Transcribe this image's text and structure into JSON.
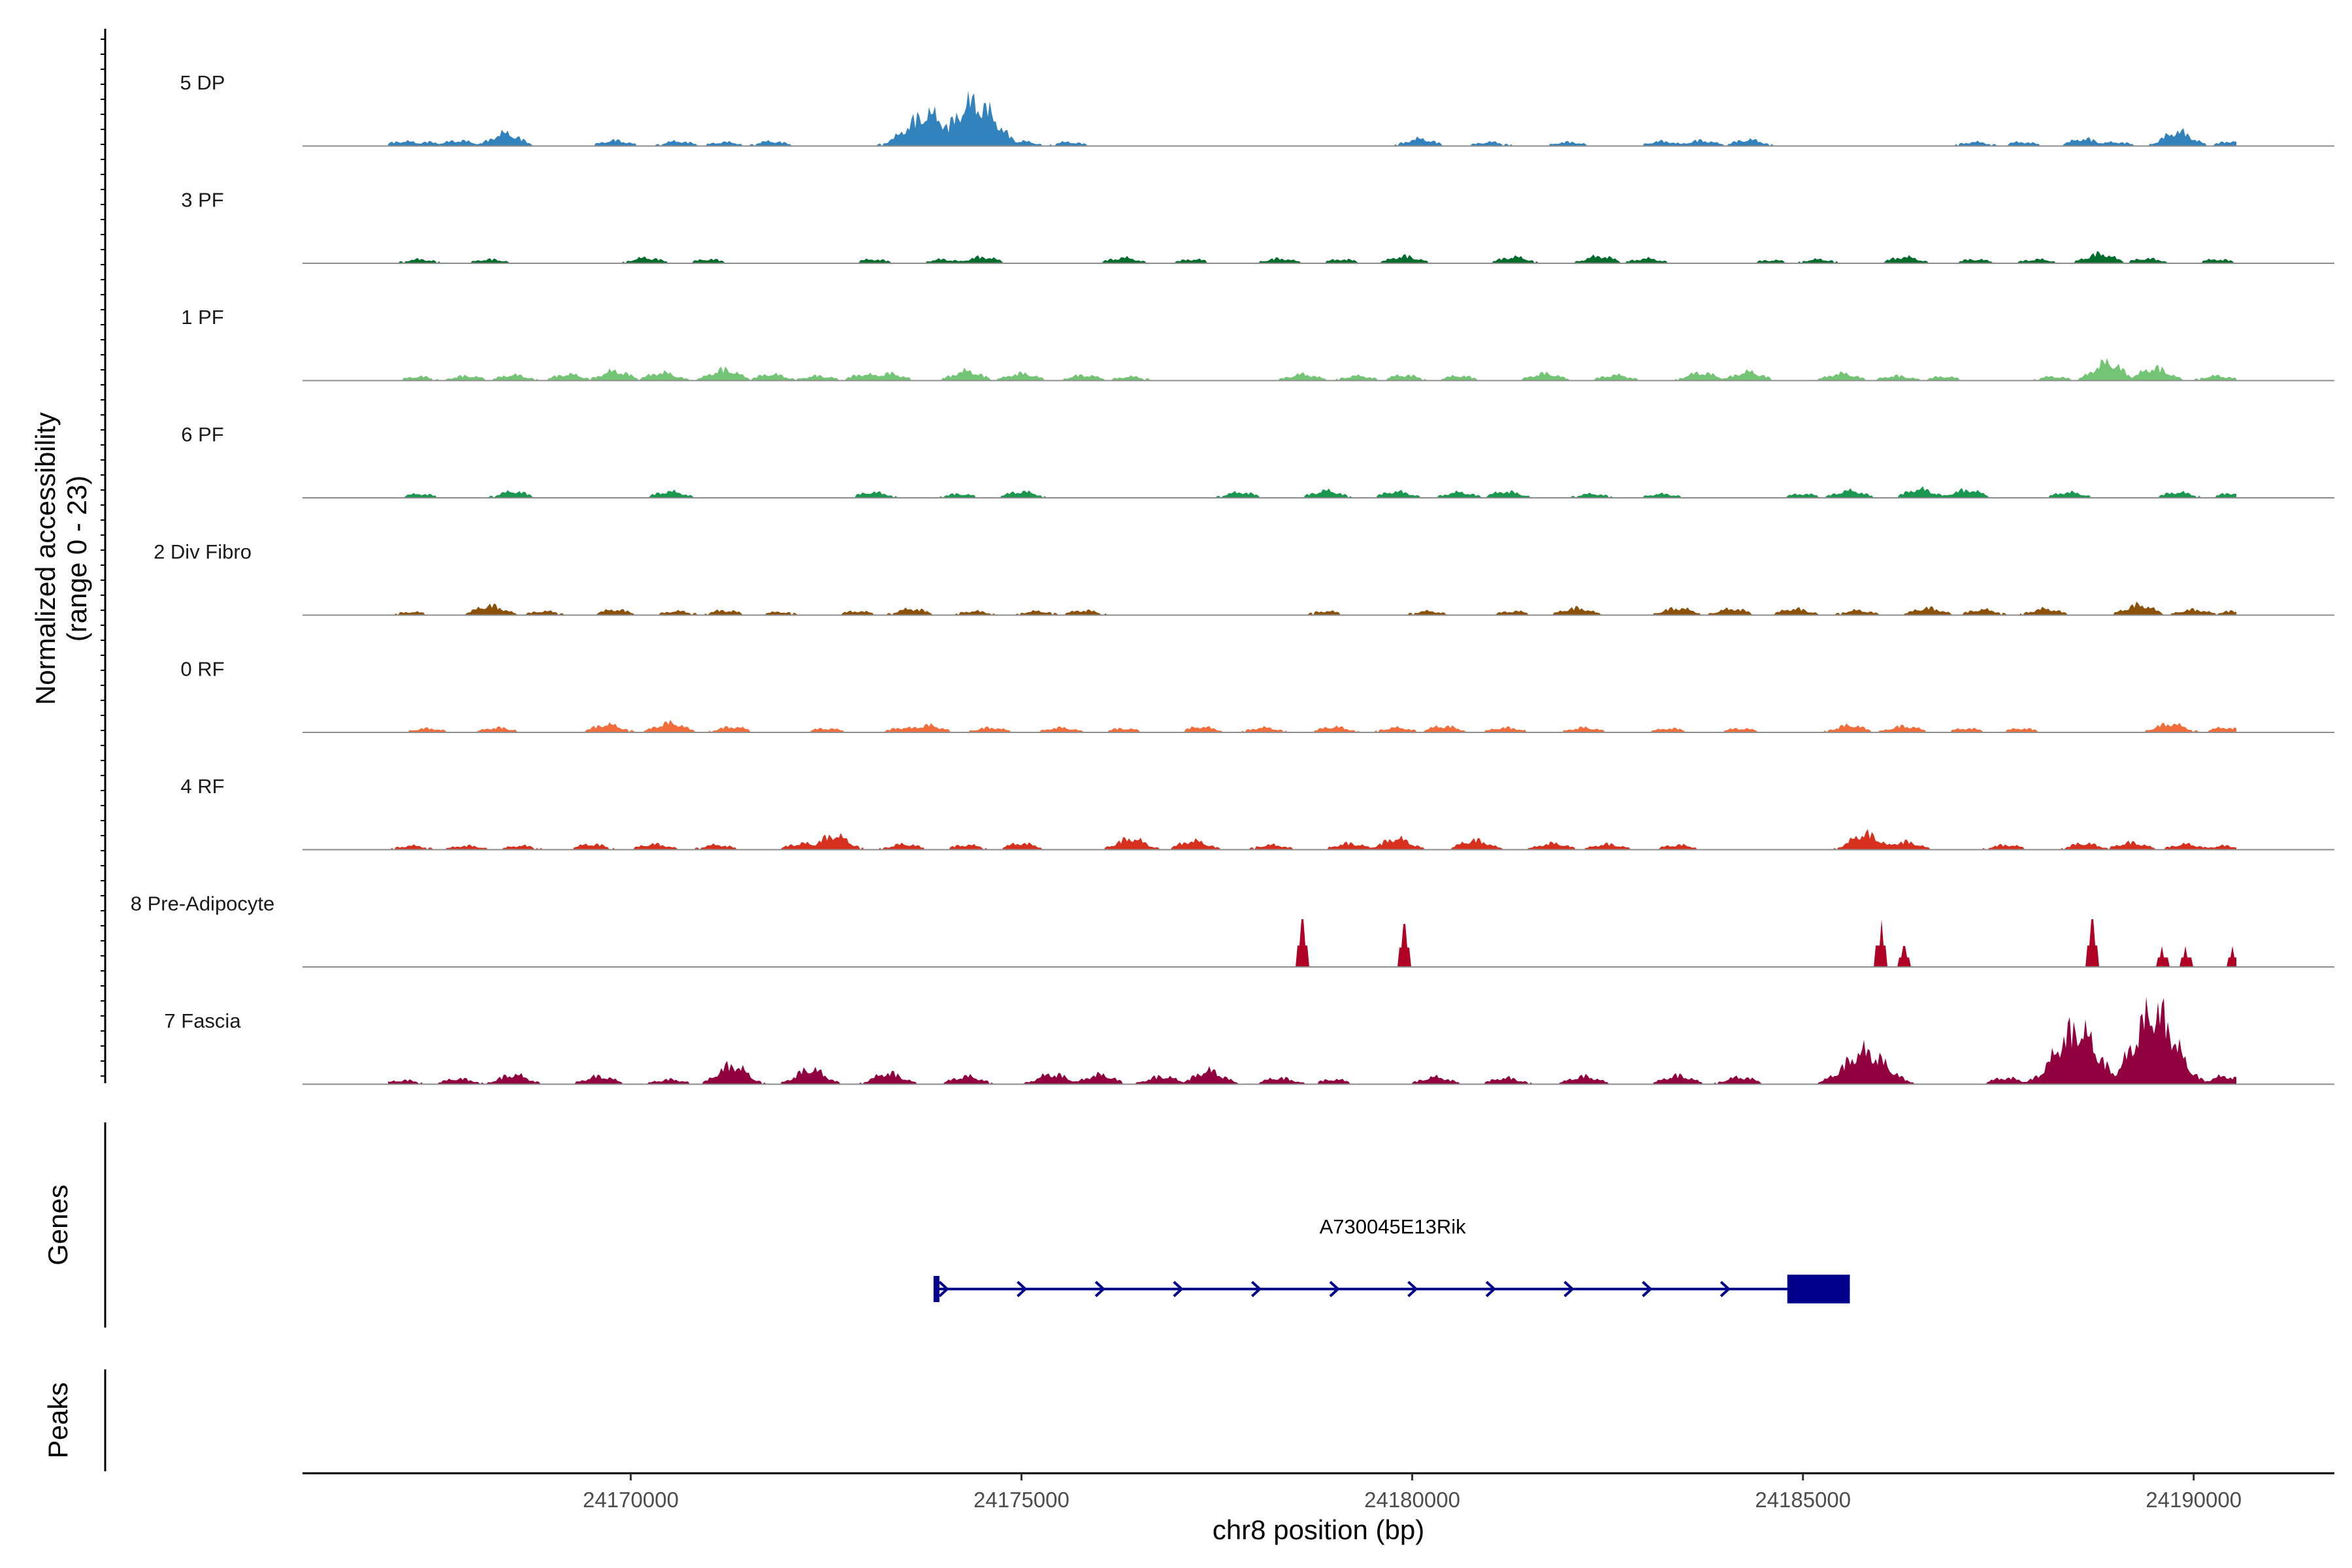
{
  "chart_data": {
    "type": "area",
    "title": "",
    "xlabel": "chr8 position (bp)",
    "ylabel_line1": "Normalized accessibility",
    "ylabel_line2": "(range 0 - 23)",
    "y_range": [
      0,
      23
    ],
    "xlim": [
      24165800,
      24191800
    ],
    "x_ticks": [
      24170000,
      24175000,
      24180000,
      24185000,
      24190000
    ],
    "x_tick_labels": [
      "24170000",
      "24175000",
      "24180000",
      "24185000",
      "24190000"
    ],
    "tracks": [
      {
        "name": "5 DP",
        "color": "#3182bd",
        "peaks": [
          [
            24167100,
            0.6
          ],
          [
            24167400,
            0.5
          ],
          [
            24167800,
            0.7
          ],
          [
            24168400,
            1.6
          ],
          [
            24169800,
            0.7
          ],
          [
            24170600,
            0.6
          ],
          [
            24171200,
            0.5
          ],
          [
            24171800,
            0.6
          ],
          [
            24173800,
            4.0
          ],
          [
            24174400,
            5.5
          ],
          [
            24175000,
            0.6
          ],
          [
            24175600,
            0.5
          ],
          [
            24180100,
            0.9
          ],
          [
            24181000,
            0.5
          ],
          [
            24182000,
            0.5
          ],
          [
            24183200,
            0.6
          ],
          [
            24183700,
            0.7
          ],
          [
            24184300,
            0.8
          ],
          [
            24187200,
            0.5
          ],
          [
            24187800,
            0.5
          ],
          [
            24188600,
            0.9
          ],
          [
            24189000,
            0.5
          ],
          [
            24189800,
            1.8
          ],
          [
            24190500,
            0.6
          ]
        ]
      },
      {
        "name": "3 PF",
        "color": "#006d2c",
        "peaks": [
          [
            24167300,
            0.5
          ],
          [
            24168200,
            0.5
          ],
          [
            24170200,
            0.7
          ],
          [
            24171000,
            0.5
          ],
          [
            24173100,
            0.5
          ],
          [
            24174000,
            0.5
          ],
          [
            24174500,
            0.8
          ],
          [
            24176300,
            0.7
          ],
          [
            24177200,
            0.5
          ],
          [
            24178300,
            0.6
          ],
          [
            24179100,
            0.5
          ],
          [
            24179900,
            0.9
          ],
          [
            24181300,
            0.8
          ],
          [
            24182400,
            0.9
          ],
          [
            24183000,
            0.6
          ],
          [
            24184600,
            0.4
          ],
          [
            24185200,
            0.5
          ],
          [
            24186300,
            0.8
          ],
          [
            24187200,
            0.5
          ],
          [
            24188000,
            0.5
          ],
          [
            24188800,
            1.2
          ],
          [
            24189400,
            0.6
          ],
          [
            24190300,
            0.5
          ]
        ]
      },
      {
        "name": "1 PF",
        "color": "#74c476",
        "peaks": [
          [
            24167300,
            0.5
          ],
          [
            24167900,
            0.6
          ],
          [
            24168500,
            0.7
          ],
          [
            24169200,
            0.8
          ],
          [
            24169800,
            1.2
          ],
          [
            24170400,
            1.0
          ],
          [
            24171200,
            1.4
          ],
          [
            24171800,
            0.8
          ],
          [
            24172400,
            0.6
          ],
          [
            24173000,
            0.8
          ],
          [
            24173300,
            0.9
          ],
          [
            24174300,
            1.2
          ],
          [
            24175000,
            0.9
          ],
          [
            24175800,
            0.7
          ],
          [
            24176400,
            0.5
          ],
          [
            24178600,
            0.8
          ],
          [
            24179300,
            0.6
          ],
          [
            24179900,
            0.7
          ],
          [
            24180600,
            0.6
          ],
          [
            24181700,
            0.9
          ],
          [
            24182600,
            0.7
          ],
          [
            24183700,
            1.0
          ],
          [
            24184300,
            1.1
          ],
          [
            24185500,
            0.9
          ],
          [
            24186200,
            0.6
          ],
          [
            24186800,
            0.5
          ],
          [
            24188200,
            0.5
          ],
          [
            24188900,
            2.3
          ],
          [
            24189500,
            1.6
          ],
          [
            24190300,
            0.6
          ]
        ]
      },
      {
        "name": "6 PF",
        "color": "#1a9850",
        "peaks": [
          [
            24167300,
            0.5
          ],
          [
            24168500,
            0.8
          ],
          [
            24170500,
            0.8
          ],
          [
            24173100,
            0.7
          ],
          [
            24174200,
            0.5
          ],
          [
            24175000,
            0.8
          ],
          [
            24177800,
            0.7
          ],
          [
            24178900,
            0.9
          ],
          [
            24179800,
            0.8
          ],
          [
            24180600,
            0.7
          ],
          [
            24181200,
            0.8
          ],
          [
            24182300,
            0.5
          ],
          [
            24183200,
            0.5
          ],
          [
            24185000,
            0.5
          ],
          [
            24185600,
            0.9
          ],
          [
            24186500,
            1.1
          ],
          [
            24187100,
            1.0
          ],
          [
            24188400,
            0.7
          ],
          [
            24189800,
            0.7
          ],
          [
            24190500,
            0.6
          ]
        ]
      },
      {
        "name": "2 Div Fibro",
        "color": "#8c510a",
        "peaks": [
          [
            24167200,
            0.4
          ],
          [
            24168200,
            1.2
          ],
          [
            24168900,
            0.5
          ],
          [
            24169800,
            0.7
          ],
          [
            24170600,
            0.5
          ],
          [
            24171200,
            0.6
          ],
          [
            24171900,
            0.4
          ],
          [
            24172900,
            0.5
          ],
          [
            24173600,
            0.8
          ],
          [
            24174400,
            0.5
          ],
          [
            24175200,
            0.5
          ],
          [
            24175800,
            0.6
          ],
          [
            24178900,
            0.5
          ],
          [
            24180200,
            0.5
          ],
          [
            24181300,
            0.5
          ],
          [
            24182100,
            0.9
          ],
          [
            24183400,
            0.9
          ],
          [
            24184100,
            0.8
          ],
          [
            24184900,
            0.8
          ],
          [
            24185700,
            0.6
          ],
          [
            24186600,
            0.9
          ],
          [
            24187300,
            0.7
          ],
          [
            24188100,
            0.8
          ],
          [
            24189300,
            1.3
          ],
          [
            24190000,
            0.7
          ],
          [
            24190500,
            0.5
          ]
        ]
      },
      {
        "name": "0 RF",
        "color": "#f16d3c",
        "peaks": [
          [
            24167400,
            0.5
          ],
          [
            24168300,
            0.6
          ],
          [
            24169700,
            1.0
          ],
          [
            24170500,
            1.2
          ],
          [
            24171300,
            0.7
          ],
          [
            24172500,
            0.5
          ],
          [
            24173500,
            0.6
          ],
          [
            24173800,
            0.9
          ],
          [
            24174600,
            0.6
          ],
          [
            24175500,
            0.6
          ],
          [
            24176300,
            0.5
          ],
          [
            24177300,
            0.7
          ],
          [
            24178100,
            0.6
          ],
          [
            24179000,
            0.7
          ],
          [
            24179800,
            0.6
          ],
          [
            24180400,
            0.8
          ],
          [
            24181200,
            0.6
          ],
          [
            24182200,
            0.6
          ],
          [
            24183300,
            0.5
          ],
          [
            24184200,
            0.5
          ],
          [
            24185600,
            0.9
          ],
          [
            24186300,
            0.8
          ],
          [
            24187100,
            0.5
          ],
          [
            24187800,
            0.5
          ],
          [
            24189700,
            1.1
          ],
          [
            24190400,
            0.6
          ]
        ]
      },
      {
        "name": "4 RF",
        "color": "#d7301f",
        "peaks": [
          [
            24167200,
            0.5
          ],
          [
            24167900,
            0.5
          ],
          [
            24168600,
            0.5
          ],
          [
            24169500,
            0.7
          ],
          [
            24170300,
            0.7
          ],
          [
            24171100,
            0.6
          ],
          [
            24172200,
            0.8
          ],
          [
            24172600,
            1.8
          ],
          [
            24173500,
            0.7
          ],
          [
            24174300,
            0.6
          ],
          [
            24175000,
            0.8
          ],
          [
            24176400,
            1.4
          ],
          [
            24177200,
            1.1
          ],
          [
            24178200,
            0.6
          ],
          [
            24179200,
            0.8
          ],
          [
            24179800,
            1.4
          ],
          [
            24180800,
            1.2
          ],
          [
            24181800,
            0.8
          ],
          [
            24182500,
            0.7
          ],
          [
            24183400,
            0.6
          ],
          [
            24185800,
            2.0
          ],
          [
            24186300,
            1.0
          ],
          [
            24187600,
            0.6
          ],
          [
            24188600,
            0.8
          ],
          [
            24189200,
            0.9
          ],
          [
            24189900,
            0.7
          ],
          [
            24190400,
            0.5
          ]
        ]
      },
      {
        "name": "8 Pre-Adipocyte",
        "color": "#b10026",
        "peaks": [
          [
            24178600,
            5.0
          ],
          [
            24179900,
            4.5
          ],
          [
            24186000,
            5.0
          ],
          [
            24186300,
            2.2
          ],
          [
            24188700,
            5.0
          ],
          [
            24189600,
            2.2
          ],
          [
            24189900,
            2.2
          ],
          [
            24190500,
            2.2
          ]
        ]
      },
      {
        "name": "7 Fascia",
        "color": "#91003f",
        "peaks": [
          [
            24167100,
            0.5
          ],
          [
            24167800,
            0.7
          ],
          [
            24168500,
            1.2
          ],
          [
            24169600,
            1.0
          ],
          [
            24170500,
            0.6
          ],
          [
            24171300,
            2.4
          ],
          [
            24172300,
            1.9
          ],
          [
            24173300,
            1.4
          ],
          [
            24174300,
            1.0
          ],
          [
            24175400,
            1.3
          ],
          [
            24176000,
            1.2
          ],
          [
            24176800,
            1.0
          ],
          [
            24177400,
            1.7
          ],
          [
            24178300,
            0.8
          ],
          [
            24179000,
            0.6
          ],
          [
            24180300,
            0.9
          ],
          [
            24181200,
            0.8
          ],
          [
            24182200,
            1.0
          ],
          [
            24183400,
            1.1
          ],
          [
            24184200,
            0.9
          ],
          [
            24185800,
            4.1
          ],
          [
            24187600,
            0.8
          ],
          [
            24188500,
            6.9
          ],
          [
            24189500,
            9.1
          ],
          [
            24190400,
            1.0
          ]
        ]
      }
    ],
    "gene_panel_label": "Genes",
    "peaks_panel_label": "Peaks",
    "gene": {
      "name": "A730045E13Rik",
      "start": 24173900,
      "end": 24185600,
      "cds_start": 24184800,
      "strand": "+",
      "color": "#00008b"
    }
  }
}
